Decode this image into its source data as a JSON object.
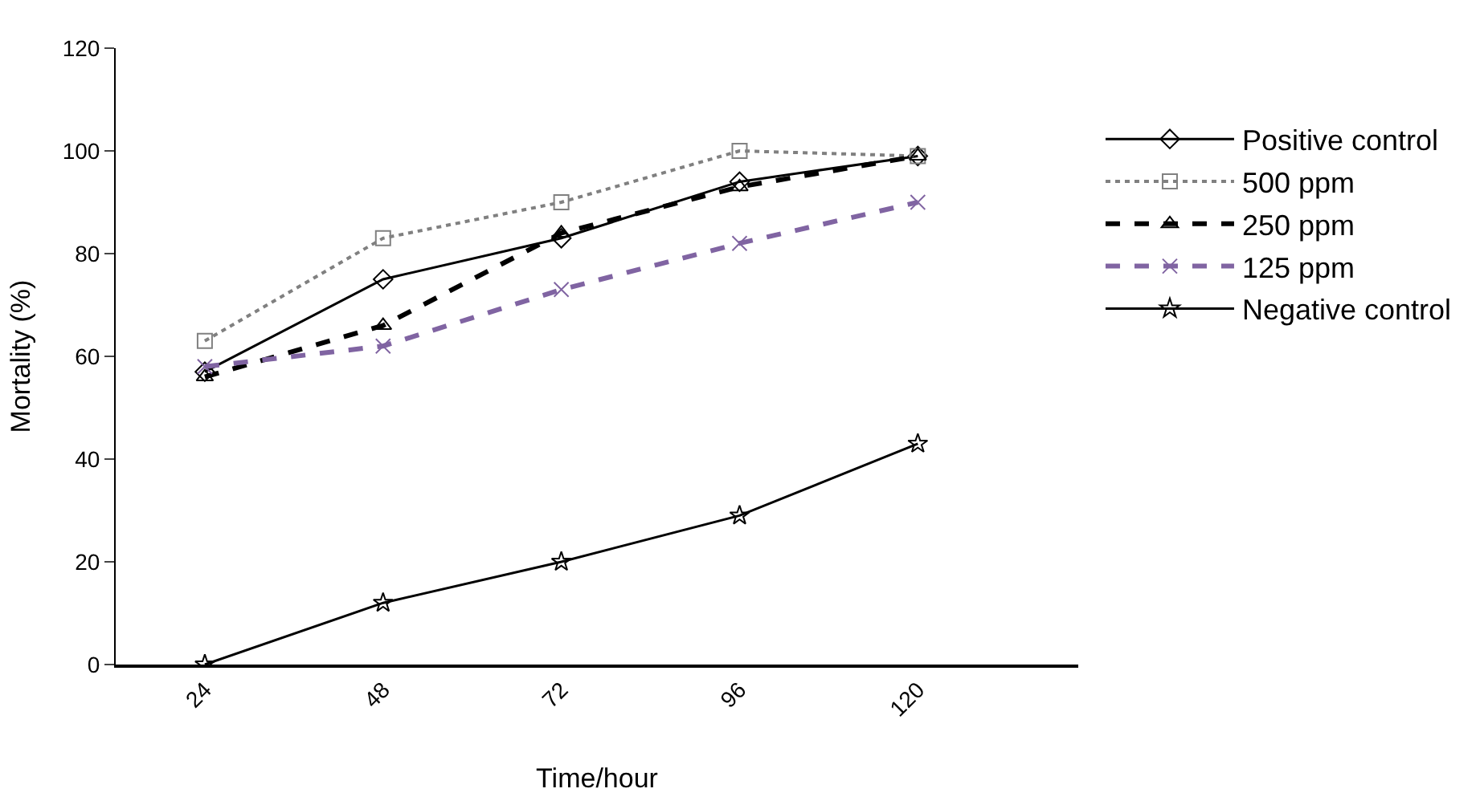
{
  "chart_data": {
    "type": "line",
    "xlabel": "Time/hour",
    "ylabel": "Mortality (%)",
    "categories": [
      "24",
      "48",
      "72",
      "96",
      "120"
    ],
    "ylim": [
      0,
      120
    ],
    "yticks": [
      0,
      20,
      40,
      60,
      80,
      100,
      120
    ],
    "legend": "right",
    "series": [
      {
        "name": "Positive control",
        "color": "#000000",
        "marker": "diamond",
        "line_style": "solid",
        "values": [
          57,
          75,
          83,
          94,
          99
        ]
      },
      {
        "name": "500 ppm",
        "color": "#808080",
        "marker": "square",
        "line_style": "dotted",
        "values": [
          63,
          83,
          90,
          100,
          99
        ]
      },
      {
        "name": "250 ppm",
        "color": "#000000",
        "marker": "triangle",
        "line_style": "dashed",
        "values": [
          56,
          66,
          84,
          93,
          99
        ]
      },
      {
        "name": "125 ppm",
        "color": "#8064a2",
        "marker": "cross",
        "line_style": "dashed",
        "values": [
          58,
          62,
          73,
          82,
          90
        ]
      },
      {
        "name": "Negative control",
        "color": "#000000",
        "marker": "star",
        "line_style": "solid",
        "values": [
          0,
          12,
          20,
          29,
          43
        ]
      }
    ]
  }
}
